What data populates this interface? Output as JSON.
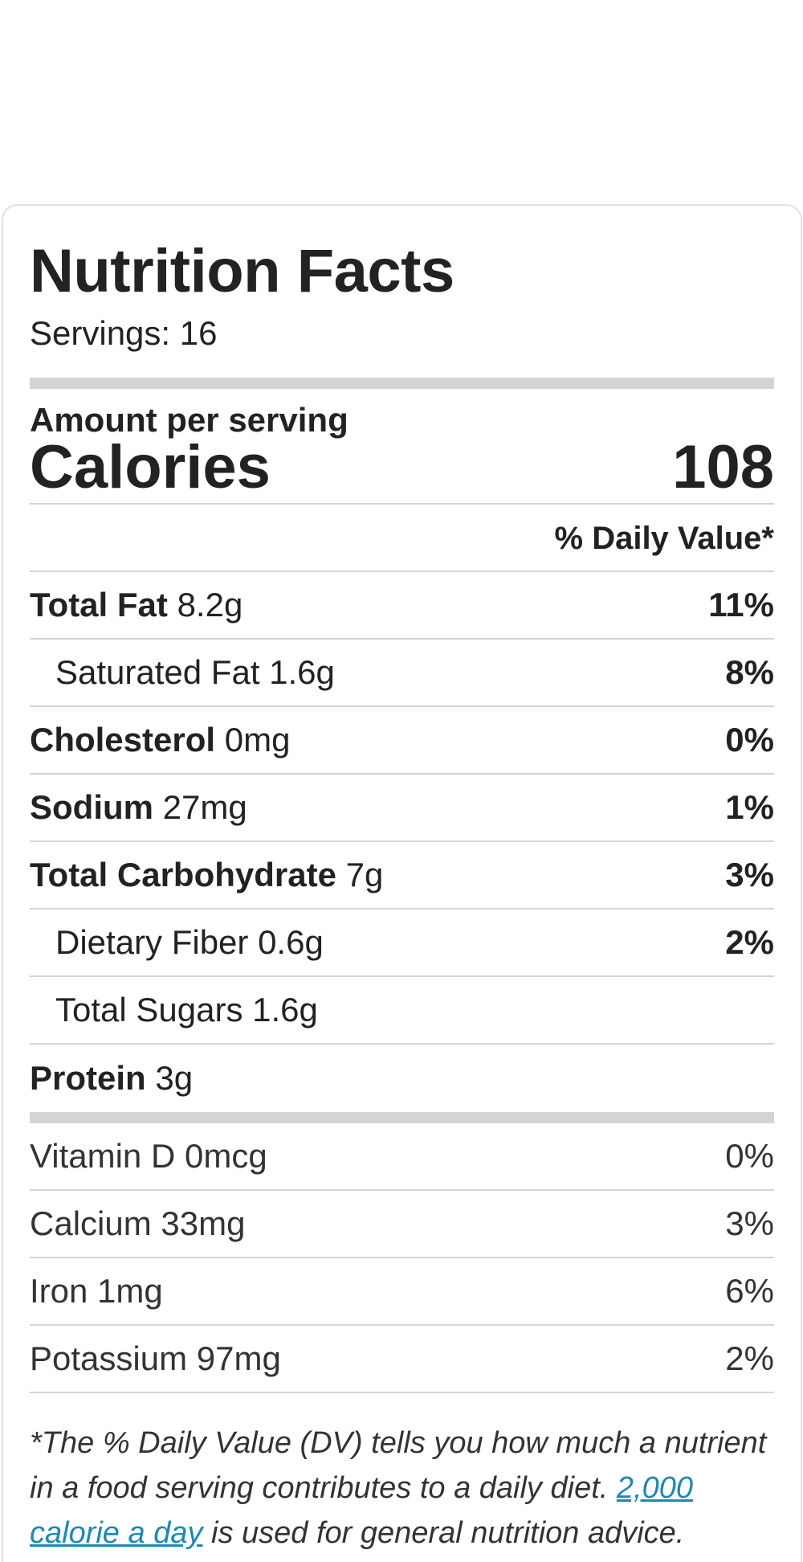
{
  "label": {
    "title": "Nutrition Facts",
    "servings": "Servings: 16",
    "amount_per_serving": "Amount per serving",
    "calories_label": "Calories",
    "calories_value": "108",
    "daily_value_header": "% Daily Value*"
  },
  "nutrients": [
    {
      "name": "Total Fat",
      "amount": "8.2g",
      "pct": "11%"
    },
    {
      "name": "Saturated Fat",
      "amount": "1.6g",
      "pct": "8%"
    },
    {
      "name": "Cholesterol",
      "amount": "0mg",
      "pct": "0%"
    },
    {
      "name": "Sodium",
      "amount": "27mg",
      "pct": "1%"
    },
    {
      "name": "Total Carbohydrate",
      "amount": "7g",
      "pct": "3%"
    },
    {
      "name": "Dietary Fiber",
      "amount": "0.6g",
      "pct": "2%"
    },
    {
      "name": "Total Sugars",
      "amount": "1.6g",
      "pct": ""
    },
    {
      "name": "Protein",
      "amount": "3g",
      "pct": ""
    }
  ],
  "vitamins": [
    {
      "name": "Vitamin D",
      "amount": "0mcg",
      "pct": "0%"
    },
    {
      "name": "Calcium",
      "amount": "33mg",
      "pct": "3%"
    },
    {
      "name": "Iron",
      "amount": "1mg",
      "pct": "6%"
    },
    {
      "name": "Potassium",
      "amount": "97mg",
      "pct": "2%"
    }
  ],
  "footnote": {
    "text_start": "*The % Daily Value (DV) tells you how much a nutrient in a food serving contributes to a daily diet. ",
    "link_text": "2,000 calorie a day",
    "text_end": " is used for general nutrition advice."
  },
  "colors": {
    "rule": "#d4d4d4",
    "link": "#1e88b5",
    "text": "#222222"
  }
}
